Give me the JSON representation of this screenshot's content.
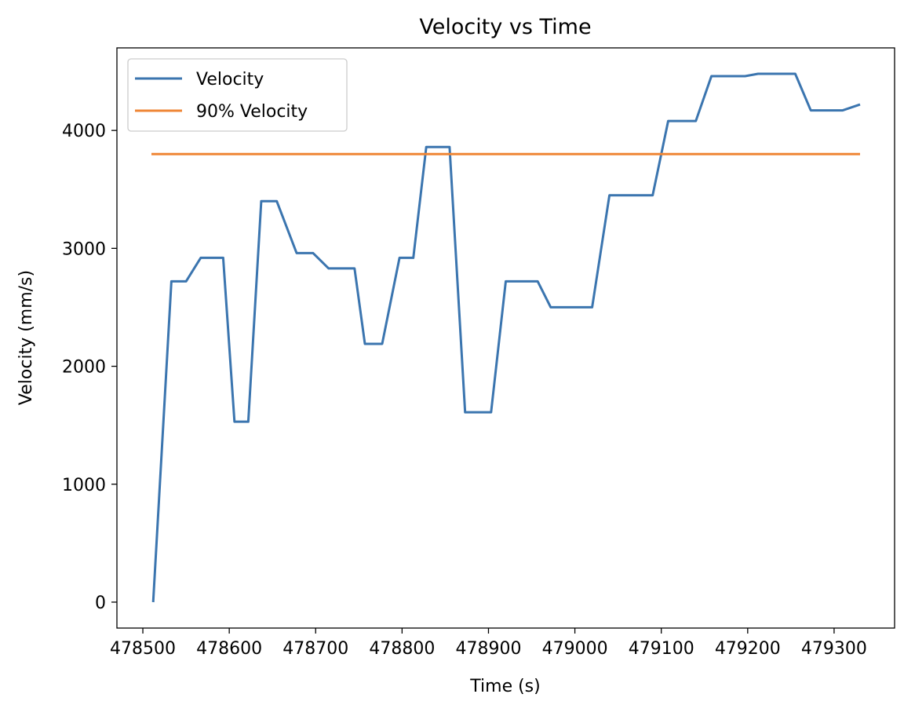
{
  "chart_data": {
    "type": "line",
    "title": "Velocity vs Time",
    "xlabel": "Time (s)",
    "ylabel": "Velocity (mm/s)",
    "xlim": [
      478470,
      479370
    ],
    "ylim": [
      -220,
      4700
    ],
    "xticks": [
      478500,
      478600,
      478700,
      478800,
      478900,
      479000,
      479100,
      479200,
      479300
    ],
    "yticks": [
      0,
      1000,
      2000,
      3000,
      4000
    ],
    "grid": false,
    "legend_position": "top-left",
    "series": [
      {
        "name": "Velocity",
        "color": "#3b75af",
        "x": [
          478512,
          478533,
          478550,
          478567,
          478593,
          478606,
          478622,
          478637,
          478655,
          478678,
          478697,
          478715,
          478745,
          478757,
          478777,
          478797,
          478813,
          478828,
          478855,
          478873,
          478903,
          478920,
          478957,
          478972,
          479020,
          479040,
          479090,
          479108,
          479140,
          479158,
          479197,
          479212,
          479255,
          479273,
          479310,
          479330
        ],
        "y": [
          0,
          2720,
          2720,
          2920,
          2920,
          1530,
          1530,
          3400,
          3400,
          2960,
          2960,
          2830,
          2830,
          2190,
          2190,
          2920,
          2920,
          3860,
          3860,
          1610,
          1610,
          2720,
          2720,
          2500,
          2500,
          3450,
          3450,
          4080,
          4080,
          4460,
          4460,
          4480,
          4480,
          4170,
          4170,
          4220
        ]
      },
      {
        "name": "90% Velocity",
        "color": "#ef8636",
        "x": [
          478510,
          479330
        ],
        "y": [
          3800,
          3800
        ]
      }
    ]
  }
}
